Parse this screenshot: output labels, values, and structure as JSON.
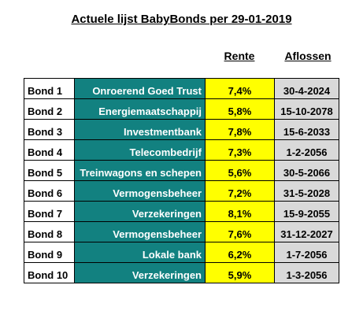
{
  "title": "Actuele lijst BabyBonds per 29-01-2019",
  "headers": {
    "rente": "Rente",
    "aflossen": "Aflossen"
  },
  "colors": {
    "sector_bg": "#128180",
    "rente_bg": "#ffff00",
    "aflossen_bg": "#d9d9d9"
  },
  "rows": [
    {
      "bond": "Bond 1",
      "sector": "Onroerend Goed Trust",
      "rente": "7,4%",
      "aflossen": "30-4-2024"
    },
    {
      "bond": "Bond 2",
      "sector": "Energiemaatschappij",
      "rente": "5,8%",
      "aflossen": "15-10-2078"
    },
    {
      "bond": "Bond 3",
      "sector": "Investmentbank",
      "rente": "7,8%",
      "aflossen": "15-6-2033"
    },
    {
      "bond": "Bond 4",
      "sector": "Telecombedrijf",
      "rente": "7,3%",
      "aflossen": "1-2-2056"
    },
    {
      "bond": "Bond 5",
      "sector": "Treinwagons en schepen",
      "rente": "5,6%",
      "aflossen": "30-5-2066"
    },
    {
      "bond": "Bond 6",
      "sector": "Vermogensbeheer",
      "rente": "7,2%",
      "aflossen": "31-5-2028"
    },
    {
      "bond": "Bond 7",
      "sector": "Verzekeringen",
      "rente": "8,1%",
      "aflossen": "15-9-2055"
    },
    {
      "bond": "Bond 8",
      "sector": "Vermogensbeheer",
      "rente": "7,6%",
      "aflossen": "31-12-2027"
    },
    {
      "bond": "Bond 9",
      "sector": "Lokale bank",
      "rente": "6,2%",
      "aflossen": "1-7-2056"
    },
    {
      "bond": "Bond 10",
      "sector": "Verzekeringen",
      "rente": "5,9%",
      "aflossen": "1-3-2056"
    }
  ]
}
